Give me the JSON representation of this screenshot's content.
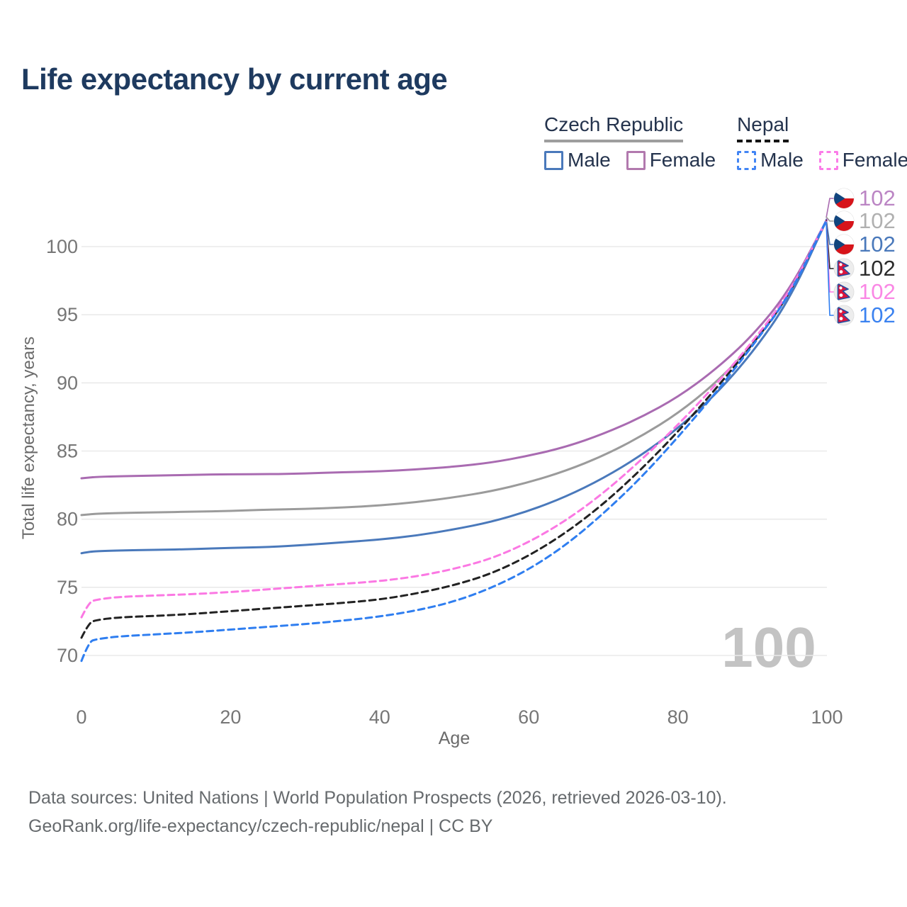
{
  "title": "Life expectancy by current age",
  "legend": {
    "groups": [
      {
        "label": "Czech Republic",
        "underline_style": "solid",
        "underline_color": "#9e9e9e",
        "items": [
          {
            "label": "Male",
            "color": "#4a79bb",
            "dashed": false
          },
          {
            "label": "Female",
            "color": "#b279ae",
            "dashed": false
          }
        ]
      },
      {
        "label": "Nepal",
        "underline_style": "dashed",
        "underline_color": "#151515",
        "items": [
          {
            "label": "Male",
            "color": "#4285f4",
            "dashed": true
          },
          {
            "label": "Female",
            "color": "#fb7ce8",
            "dashed": true
          }
        ]
      }
    ]
  },
  "watermark": "100",
  "end_labels": [
    {
      "flag": "czech-republic",
      "value": "102",
      "color": "#bb85c4",
      "series": "czech-female"
    },
    {
      "flag": "czech-republic",
      "value": "102",
      "color": "#b0b0b0",
      "series": "czech-total"
    },
    {
      "flag": "czech-republic",
      "value": "102",
      "color": "#4a79bb",
      "series": "czech-male"
    },
    {
      "flag": "nepal",
      "value": "102",
      "color": "#2b2b2b",
      "series": "nepal-total"
    },
    {
      "flag": "nepal",
      "value": "102",
      "color": "#fa87e5",
      "series": "nepal-female"
    },
    {
      "flag": "nepal",
      "value": "102",
      "color": "#3b82f0",
      "series": "nepal-male"
    }
  ],
  "footer": {
    "line1": "Data sources: United Nations | World Population Prospects (2026, retrieved 2026-03-10).",
    "line2": "GeoRank.org/life-expectancy/czech-republic/nepal | CC BY"
  },
  "chart_data": {
    "type": "line",
    "title": "Life expectancy by current age",
    "xlabel": "Age",
    "ylabel": "Total life expectancy, years",
    "xlim": [
      0,
      100
    ],
    "ylim": [
      67.5,
      103
    ],
    "x_ticks": [
      0,
      20,
      40,
      60,
      80,
      100
    ],
    "y_ticks": [
      70,
      75,
      80,
      85,
      90,
      95,
      100
    ],
    "grid": true,
    "legend_position": "top-right",
    "ages": [
      0,
      1,
      2,
      5,
      10,
      15,
      20,
      25,
      30,
      35,
      40,
      45,
      50,
      55,
      60,
      65,
      70,
      75,
      80,
      85,
      90,
      95,
      100
    ],
    "series": [
      {
        "id": "czech-total",
        "name": "Czech Republic — Total",
        "style": "solid",
        "color": "#9b9b9b",
        "values": [
          80.3,
          80.35,
          80.4,
          80.45,
          80.5,
          80.55,
          80.6,
          80.7,
          80.75,
          80.85,
          81.0,
          81.25,
          81.6,
          82.05,
          82.7,
          83.55,
          84.65,
          86.05,
          87.75,
          89.95,
          92.75,
          96.4,
          102
        ]
      },
      {
        "id": "czech-female",
        "name": "Czech Republic — Female",
        "style": "solid",
        "color": "#a96bb1",
        "values": [
          83.0,
          83.05,
          83.1,
          83.15,
          83.2,
          83.25,
          83.3,
          83.3,
          83.35,
          83.45,
          83.5,
          83.65,
          83.85,
          84.15,
          84.65,
          85.3,
          86.25,
          87.45,
          88.95,
          90.95,
          93.45,
          96.8,
          102
        ]
      },
      {
        "id": "czech-male",
        "name": "Czech Republic — Male",
        "style": "solid",
        "color": "#4a79bb",
        "values": [
          77.5,
          77.6,
          77.65,
          77.7,
          77.75,
          77.8,
          77.9,
          77.95,
          78.1,
          78.3,
          78.5,
          78.8,
          79.25,
          79.8,
          80.6,
          81.65,
          83.0,
          84.65,
          86.65,
          89.1,
          92.2,
          96.1,
          102
        ]
      },
      {
        "id": "nepal-total",
        "name": "Nepal — Total",
        "style": "dashed",
        "color": "#222222",
        "values": [
          71.3,
          72.4,
          72.6,
          72.8,
          72.9,
          73.05,
          73.25,
          73.45,
          73.65,
          73.85,
          74.1,
          74.55,
          75.15,
          76.0,
          77.3,
          79.0,
          81.1,
          83.6,
          86.4,
          89.5,
          92.8,
          96.5,
          102
        ]
      },
      {
        "id": "nepal-female",
        "name": "Nepal — Female",
        "style": "dashed",
        "color": "#fb78e3",
        "values": [
          72.8,
          73.9,
          74.1,
          74.3,
          74.4,
          74.5,
          74.65,
          74.85,
          75.05,
          75.25,
          75.45,
          75.8,
          76.35,
          77.1,
          78.3,
          79.9,
          81.9,
          84.3,
          86.9,
          89.8,
          93.0,
          96.6,
          102
        ]
      },
      {
        "id": "nepal-male",
        "name": "Nepal — Male",
        "style": "dashed",
        "color": "#2f7ef0",
        "values": [
          69.6,
          71.0,
          71.2,
          71.4,
          71.55,
          71.7,
          71.9,
          72.1,
          72.3,
          72.55,
          72.85,
          73.3,
          73.95,
          74.95,
          76.3,
          78.1,
          80.4,
          83.0,
          86.0,
          89.2,
          92.7,
          96.4,
          102
        ]
      }
    ]
  }
}
